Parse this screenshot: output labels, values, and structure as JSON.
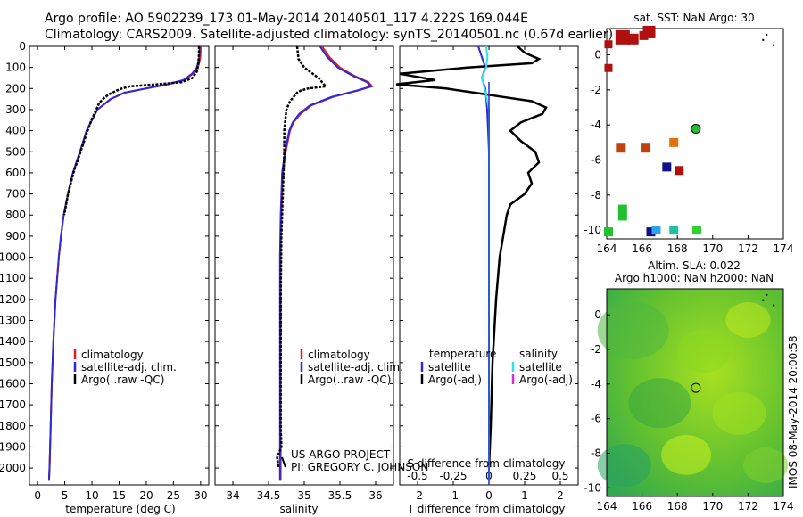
{
  "header": {
    "line1": "Argo profile: AO 5902239_173 01-May-2014 20140501_117 4.222S 169.044E",
    "line2": "Climatology: CARS2009. Satellite-adjusted climatology: synTS_20140501.nc (0.67d earlier)"
  },
  "colors": {
    "climatology": "#e02020",
    "satellite": "#2a2ad8",
    "argo": "#000000",
    "sat_salinity": "#30e0f0",
    "argo_adj_salinity": "#d030d0"
  },
  "chart_data": [
    {
      "type": "line",
      "name": "temperature-profile",
      "xlabel": "temperature (deg C)",
      "ylabel": "",
      "xlim": [
        -1.5,
        31.5
      ],
      "ylim": [
        2080,
        0
      ],
      "xticks": [
        0,
        5,
        10,
        15,
        20,
        25,
        30
      ],
      "yticks": [
        0,
        100,
        200,
        300,
        400,
        500,
        600,
        700,
        800,
        900,
        1000,
        1100,
        1200,
        1300,
        1400,
        1500,
        1600,
        1700,
        1800,
        1900,
        2000
      ],
      "legend": [
        "climatology",
        "satellite-adj. clim.",
        "Argo(..raw -QC)"
      ],
      "series": [
        {
          "name": "climatology",
          "depth": [
            0,
            30,
            60,
            100,
            130,
            160,
            180,
            200,
            220,
            250,
            300,
            400,
            500,
            600,
            700,
            800,
            900,
            1000,
            1200,
            1400,
            1600,
            1800,
            2000,
            2060
          ],
          "values": [
            30,
            30,
            29.9,
            29.5,
            28.6,
            27,
            24,
            20,
            16,
            13.5,
            11,
            9,
            7.8,
            6.5,
            5.6,
            4.8,
            4.3,
            3.9,
            3.3,
            2.9,
            2.6,
            2.4,
            2.2,
            2.1
          ]
        },
        {
          "name": "satellite-adj. clim.",
          "depth": [
            0,
            30,
            60,
            100,
            130,
            160,
            180,
            200,
            220,
            250,
            300,
            400,
            500,
            600,
            700,
            800,
            900,
            1000,
            1200,
            1400,
            1600,
            1800,
            2000,
            2060
          ],
          "values": [
            29.8,
            29.8,
            29.7,
            29.3,
            28.4,
            26.8,
            23.8,
            19.8,
            16,
            13.4,
            11,
            9,
            7.8,
            6.5,
            5.6,
            4.8,
            4.3,
            3.9,
            3.3,
            2.9,
            2.6,
            2.4,
            2.2,
            2.1
          ]
        },
        {
          "name": "Argo(..raw -QC)",
          "depth": [
            0,
            40,
            80,
            120,
            150,
            170,
            180,
            190,
            200,
            210,
            230,
            250,
            270,
            300,
            350,
            400,
            500,
            600,
            700,
            800
          ],
          "values": [
            29.7,
            29.7,
            29.6,
            29.3,
            28.5,
            26.5,
            22,
            17,
            15.5,
            14.5,
            13,
            12,
            11.3,
            10.8,
            9.9,
            9.2,
            7.9,
            6.6,
            5.6,
            4.9
          ]
        }
      ]
    },
    {
      "type": "line",
      "name": "salinity-profile",
      "xlabel": "salinity",
      "xlim": [
        33.75,
        36.25
      ],
      "ylim": [
        2080,
        0
      ],
      "xticks": [
        34,
        34.5,
        35,
        35.5,
        36
      ],
      "legend": [
        "climatology",
        "satellite-adj. clim.",
        "Argo(..raw -QC)"
      ],
      "annotation": [
        "US ARGO PROJECT",
        "PI: GREGORY C. JOHNSON"
      ],
      "series": [
        {
          "name": "climatology",
          "depth": [
            0,
            50,
            100,
            140,
            170,
            190,
            210,
            240,
            280,
            320,
            360,
            400,
            500,
            600,
            800,
            1000,
            1200,
            1500,
            1800,
            2000,
            2060
          ],
          "values": [
            35.25,
            35.35,
            35.5,
            35.7,
            35.9,
            35.95,
            35.75,
            35.4,
            35.1,
            34.95,
            34.85,
            34.8,
            34.74,
            34.7,
            34.68,
            34.67,
            34.67,
            34.67,
            34.67,
            34.67,
            34.67
          ]
        },
        {
          "name": "satellite-adj. clim.",
          "depth": [
            0,
            50,
            100,
            140,
            170,
            190,
            210,
            240,
            280,
            320,
            360,
            400,
            500,
            600,
            800,
            1000,
            1200,
            1500,
            1800,
            2000,
            2060
          ],
          "values": [
            35.22,
            35.32,
            35.47,
            35.68,
            35.88,
            35.93,
            35.73,
            35.38,
            35.08,
            34.93,
            34.84,
            34.79,
            34.73,
            34.69,
            34.67,
            34.66,
            34.66,
            34.66,
            34.66,
            34.66,
            34.66
          ]
        },
        {
          "name": "Argo(..raw -QC)",
          "depth": [
            0,
            60,
            100,
            150,
            190,
            200,
            210,
            220,
            240,
            260,
            300,
            400,
            500,
            700,
            900,
            1200,
            1500,
            1800,
            1900,
            1950,
            2000
          ],
          "values": [
            34.9,
            34.92,
            35,
            35.2,
            35.3,
            35.05,
            34.95,
            34.9,
            34.85,
            34.8,
            34.75,
            34.72,
            34.72,
            34.7,
            34.68,
            34.67,
            34.67,
            34.67,
            34.68,
            34.62,
            34.64
          ]
        }
      ]
    },
    {
      "type": "line",
      "name": "difference-profile",
      "xlabel": "T difference from climatology",
      "xlabel_top": "S difference from climatology",
      "xlim": [
        -2.5,
        2.5
      ],
      "ylim": [
        2080,
        0
      ],
      "xticks": [
        -2,
        -1,
        0,
        1,
        2
      ],
      "xticks_salinity": [
        -0.5,
        -0.25,
        0,
        0.25,
        0.5
      ],
      "legend_temperature": [
        "temperature",
        "satellite",
        "Argo(-adj)"
      ],
      "legend_salinity": [
        "salinity",
        "satellite",
        "Argo(-adj)"
      ],
      "series": [
        {
          "name": "temperature satellite",
          "depth": [
            0,
            50,
            100,
            150,
            200,
            300,
            500,
            1000,
            2000,
            2060
          ],
          "values": [
            -0.3,
            -0.2,
            -0.1,
            -0.2,
            -0.1,
            -0.05,
            0,
            0,
            0,
            0
          ]
        },
        {
          "name": "temperature Argo(-adj)",
          "depth": [
            0,
            30,
            60,
            80,
            100,
            130,
            160,
            180,
            200,
            220,
            240,
            260,
            290,
            320,
            360,
            400,
            450,
            500,
            550,
            600,
            650,
            700,
            750,
            800,
            900,
            1000,
            1200,
            1500,
            1800,
            2000
          ],
          "values": [
            0.8,
            1.0,
            1.4,
            1.2,
            -0.6,
            -2.5,
            -1.5,
            -2.6,
            -1.2,
            -0.4,
            0.4,
            1.2,
            1.6,
            1.5,
            0.9,
            0.6,
            0.9,
            1.3,
            1.4,
            1.1,
            1.2,
            1.0,
            0.6,
            0.5,
            0.4,
            0.3,
            0.2,
            0.1,
            0.05,
            0
          ]
        },
        {
          "name": "salinity satellite",
          "depth": [
            0,
            50,
            100,
            150,
            200,
            300,
            500,
            1000,
            2000,
            2060
          ],
          "values": [
            -0.02,
            -0.01,
            -0.02,
            -0.05,
            -0.03,
            0,
            0,
            0,
            0,
            0
          ]
        },
        {
          "name": "salinity Argo(-adj)",
          "depth": [],
          "values": []
        }
      ]
    },
    {
      "type": "heatmap",
      "name": "sst-map",
      "title": "sat. SST: NaN Argo: 30",
      "xlim": [
        164,
        174
      ],
      "ylim": [
        -10.5,
        1.5
      ],
      "xticks": [
        164,
        166,
        168,
        170,
        172,
        174
      ],
      "yticks": [
        0,
        -2,
        -4,
        -6,
        -8,
        -10
      ],
      "argo_position": [
        169.044,
        -4.222
      ],
      "points": [
        {
          "lon": 164.9,
          "lat": 1.0,
          "color": "#b01010",
          "size": 16
        },
        {
          "lon": 165.5,
          "lat": 0.9,
          "color": "#b01010",
          "size": 12
        },
        {
          "lon": 166.4,
          "lat": 1.3,
          "color": "#b01010",
          "size": 14
        },
        {
          "lon": 166.1,
          "lat": 1.1,
          "color": "#b01010",
          "size": 10
        },
        {
          "lon": 164.1,
          "lat": 0.6,
          "color": "#b01010",
          "size": 9
        },
        {
          "lon": 164.1,
          "lat": -0.75,
          "color": "#b01010",
          "size": 9
        },
        {
          "lon": 164.8,
          "lat": -5.3,
          "color": "#c04010",
          "size": 11
        },
        {
          "lon": 166.2,
          "lat": -5.3,
          "color": "#c04010",
          "size": 11
        },
        {
          "lon": 167.8,
          "lat": -5.0,
          "color": "#e07010",
          "size": 10
        },
        {
          "lon": 167.4,
          "lat": -6.4,
          "color": "#101080",
          "size": 10
        },
        {
          "lon": 168.1,
          "lat": -6.6,
          "color": "#b01010",
          "size": 10
        },
        {
          "lon": 164.9,
          "lat": -8.8,
          "color": "#20c030",
          "size": 10
        },
        {
          "lon": 164.9,
          "lat": -9.2,
          "color": "#20c030",
          "size": 10
        },
        {
          "lon": 164.1,
          "lat": -10.1,
          "color": "#20c030",
          "size": 10
        },
        {
          "lon": 166.5,
          "lat": -10.1,
          "color": "#101080",
          "size": 10
        },
        {
          "lon": 166.8,
          "lat": -10.0,
          "color": "#30a0f0",
          "size": 10
        },
        {
          "lon": 167.8,
          "lat": -10.0,
          "color": "#20c0a0",
          "size": 10
        },
        {
          "lon": 169.1,
          "lat": -10.0,
          "color": "#30d030",
          "size": 10
        }
      ]
    },
    {
      "type": "heatmap",
      "name": "sla-map",
      "title": "Altim. SLA: 0.022",
      "subtitle": "Argo h1000: NaN h2000: NaN",
      "xlim": [
        164,
        174
      ],
      "ylim": [
        -10.5,
        1.5
      ],
      "xticks": [
        164,
        166,
        168,
        170,
        172,
        174
      ],
      "yticks": [
        0,
        -2,
        -4,
        -6,
        -8,
        -10
      ],
      "argo_position": [
        169.044,
        -4.222
      ]
    }
  ],
  "side_label": "IMOS 08-May-2014 20:00:58"
}
